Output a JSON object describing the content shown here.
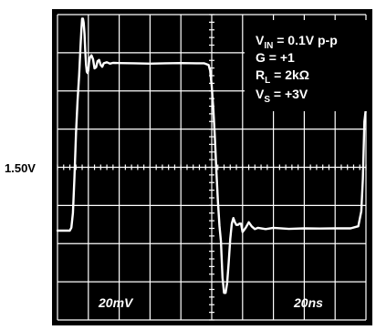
{
  "chart_data": {
    "type": "line",
    "title": "",
    "xlabel": "",
    "ylabel": "",
    "grid": true,
    "center_level_label": "1.50V",
    "vertical_scale_label": "20mV",
    "horizontal_scale_label": "20ns",
    "conditions": [
      {
        "main": "V",
        "sub": "IN",
        "rest": " = 0.1V p-p"
      },
      {
        "main": "G = +1",
        "sub": "",
        "rest": ""
      },
      {
        "main": "R",
        "sub": "L",
        "rest": " = 2kΩ"
      },
      {
        "main": "V",
        "sub": "S",
        "rest": " = +3V"
      }
    ],
    "x_divisions": 10,
    "y_divisions": 8,
    "xlim": [
      0,
      200
    ],
    "ylim": [
      1.42,
      1.58
    ],
    "x_unit": "ns",
    "y_unit": "V",
    "series": [
      {
        "x": [
          0,
          8,
          9,
          10,
          11,
          12,
          13,
          14,
          15,
          15.5,
          16,
          16.5,
          17,
          17.5,
          18,
          18.5,
          19,
          19.5,
          20,
          20.5,
          21,
          22,
          23,
          24,
          25,
          26,
          27,
          28,
          29,
          30,
          32,
          34,
          36,
          40,
          50,
          60,
          70,
          80,
          90,
          95,
          98,
          99,
          100,
          101,
          102,
          103,
          104,
          105,
          106,
          107,
          108,
          109,
          110,
          111,
          112,
          113,
          114,
          115,
          116,
          117,
          118,
          119,
          120,
          122,
          124,
          126,
          128,
          130,
          135,
          140,
          150,
          160,
          170,
          180,
          190,
          195,
          197,
          198,
          199,
          200
        ],
        "y": [
          1.4668,
          1.4668,
          1.4684,
          1.476,
          1.495,
          1.518,
          1.535,
          1.548,
          1.564,
          1.5721,
          1.5779,
          1.5779,
          1.5757,
          1.5699,
          1.5611,
          1.5538,
          1.5501,
          1.5494,
          1.5509,
          1.5552,
          1.5574,
          1.5587,
          1.5567,
          1.5518,
          1.5524,
          1.5556,
          1.5562,
          1.5537,
          1.5527,
          1.5545,
          1.555,
          1.5543,
          1.5547,
          1.5546,
          1.5545,
          1.5543,
          1.5545,
          1.5546,
          1.5545,
          1.5545,
          1.5536,
          1.5506,
          1.5425,
          1.531,
          1.516,
          1.498,
          1.482,
          1.4692,
          1.4611,
          1.4422,
          1.4342,
          1.4342,
          1.4393,
          1.4502,
          1.4625,
          1.4705,
          1.4734,
          1.4712,
          1.4698,
          1.4698,
          1.4705,
          1.4705,
          1.4661,
          1.4683,
          1.4712,
          1.469,
          1.4676,
          1.4683,
          1.4676,
          1.4683,
          1.4677,
          1.468,
          1.4679,
          1.468,
          1.468,
          1.4691,
          1.477,
          1.4938,
          1.524,
          1.531
        ]
      }
    ]
  }
}
